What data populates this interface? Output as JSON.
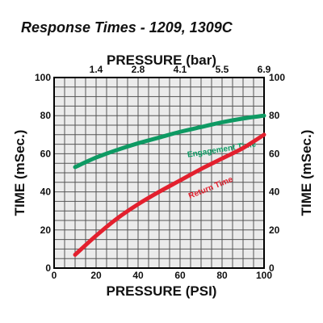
{
  "chart_data": {
    "type": "line",
    "title": "Response Times  - 1209, 1309C",
    "xlabel": "PRESSURE (PSI)",
    "x2label": "PRESSURE (bar)",
    "ylabel": "TIME (mSec.)",
    "xlim": [
      0,
      100
    ],
    "ylim": [
      0,
      100
    ],
    "grid": true,
    "x_ticks": [
      "0",
      "20",
      "40",
      "60",
      "80",
      "100"
    ],
    "x2_ticks": [
      {
        "at": 20,
        "label": "1.4"
      },
      {
        "at": 40,
        "label": "2.8"
      },
      {
        "at": 60,
        "label": "4.1"
      },
      {
        "at": 80,
        "label": "5.5"
      },
      {
        "at": 100,
        "label": "6.9"
      }
    ],
    "y_ticks": [
      "0",
      "20",
      "40",
      "60",
      "80",
      "100"
    ],
    "series": [
      {
        "name": "Engagement Time",
        "color": "#0e9a63",
        "x": [
          10,
          20,
          30,
          40,
          50,
          60,
          70,
          80,
          90,
          100
        ],
        "y": [
          53,
          58,
          62,
          65.5,
          68.5,
          71.5,
          74,
          76.5,
          78.5,
          80
        ]
      },
      {
        "name": "Return Time",
        "color": "#e3202e",
        "x": [
          10,
          20,
          30,
          40,
          50,
          60,
          70,
          80,
          90,
          100
        ],
        "y": [
          7,
          17,
          26,
          33.5,
          40,
          46,
          52,
          57.5,
          63,
          70
        ]
      }
    ]
  }
}
